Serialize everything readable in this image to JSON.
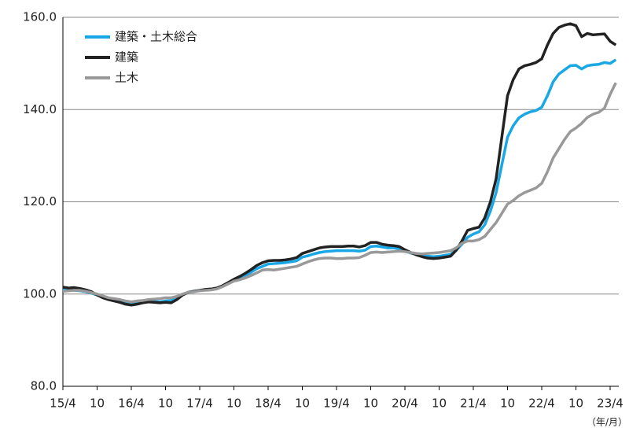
{
  "chart_data": {
    "type": "line",
    "x_label": "（年/月）",
    "categories": [
      "15/4",
      null,
      null,
      null,
      null,
      null,
      "10",
      null,
      null,
      null,
      null,
      null,
      "16/4",
      null,
      null,
      null,
      null,
      null,
      "10",
      null,
      null,
      null,
      null,
      null,
      "17/4",
      null,
      null,
      null,
      null,
      null,
      "10",
      null,
      null,
      null,
      null,
      null,
      "18/4",
      null,
      null,
      null,
      null,
      null,
      "10",
      null,
      null,
      null,
      null,
      null,
      "19/4",
      null,
      null,
      null,
      null,
      null,
      "10",
      null,
      null,
      null,
      null,
      null,
      "20/4",
      null,
      null,
      null,
      null,
      null,
      "10",
      null,
      null,
      null,
      null,
      null,
      "21/4",
      null,
      null,
      null,
      null,
      null,
      "10",
      null,
      null,
      null,
      null,
      null,
      "22/4",
      null,
      null,
      null,
      null,
      null,
      "10",
      null,
      null,
      null,
      null,
      null,
      "23/4",
      null
    ],
    "series": [
      {
        "name": "建築・土木総合",
        "color": "#1aa7e6",
        "values": [
          101,
          100.8,
          100.8,
          100.7,
          100.5,
          100.2,
          99.8,
          99.3,
          99,
          98.7,
          98.5,
          98.2,
          98,
          98,
          98.2,
          98.4,
          98.4,
          98.3,
          98.5,
          98.6,
          99,
          99.8,
          100.4,
          100.6,
          100.8,
          100.9,
          101,
          101.2,
          101.8,
          102.4,
          103,
          103.5,
          104,
          104.7,
          105.5,
          106,
          106.5,
          106.6,
          106.7,
          106.8,
          107,
          107.2,
          108,
          108.3,
          108.7,
          109,
          109.2,
          109.3,
          109.4,
          109.4,
          109.4,
          109.4,
          109.3,
          109.5,
          110.3,
          110.4,
          110.2,
          110,
          110,
          109.8,
          109.3,
          108.9,
          108.6,
          108.3,
          108.2,
          108.1,
          108.2,
          108.4,
          108.6,
          109.5,
          110.8,
          112.3,
          113,
          113.5,
          115,
          118,
          122,
          128,
          134,
          136.5,
          138.2,
          139,
          139.5,
          139.8,
          140.5,
          143,
          146,
          147.7,
          148.6,
          149.5,
          149.6,
          148.8,
          149.5,
          149.7,
          149.8,
          150.2,
          150,
          150.8
        ]
      },
      {
        "name": "建築",
        "color": "#222222",
        "values": [
          101.5,
          101.3,
          101.4,
          101.2,
          100.9,
          100.5,
          99.8,
          99.2,
          98.8,
          98.5,
          98.2,
          97.8,
          97.6,
          97.8,
          98.1,
          98.3,
          98.2,
          98.1,
          98.2,
          98.1,
          98.8,
          99.8,
          100.4,
          100.6,
          100.8,
          101,
          101.1,
          101.3,
          101.8,
          102.5,
          103.2,
          103.8,
          104.5,
          105.3,
          106.2,
          106.8,
          107.2,
          107.3,
          107.3,
          107.4,
          107.6,
          107.9,
          108.8,
          109.2,
          109.6,
          110,
          110.2,
          110.3,
          110.3,
          110.3,
          110.4,
          110.4,
          110.2,
          110.5,
          111.2,
          111.2,
          110.8,
          110.6,
          110.5,
          110.3,
          109.6,
          109,
          108.5,
          108.1,
          107.8,
          107.7,
          107.8,
          108,
          108.2,
          109.5,
          111.5,
          113.8,
          114.2,
          114.5,
          116.5,
          120,
          125,
          134,
          143,
          146.5,
          148.8,
          149.5,
          149.8,
          150.2,
          151,
          154,
          156.5,
          157.8,
          158.3,
          158.6,
          158.2,
          155.8,
          156.5,
          156.2,
          156.3,
          156.4,
          154.8,
          154
        ]
      },
      {
        "name": "土木",
        "color": "#999999",
        "values": [
          100.6,
          100.7,
          100.8,
          100.8,
          100.6,
          100.3,
          100,
          99.6,
          99.2,
          99,
          98.8,
          98.5,
          98.3,
          98.5,
          98.6,
          98.8,
          98.9,
          99,
          99.2,
          99.2,
          99.5,
          100,
          100.4,
          100.5,
          100.7,
          100.8,
          100.9,
          101.1,
          101.6,
          102.2,
          102.8,
          103.1,
          103.5,
          104,
          104.6,
          105.2,
          105.3,
          105.2,
          105.4,
          105.6,
          105.8,
          106,
          106.5,
          107,
          107.4,
          107.7,
          107.8,
          107.8,
          107.7,
          107.7,
          107.8,
          107.8,
          107.9,
          108.4,
          109,
          109.1,
          109,
          109.1,
          109.2,
          109.3,
          109.2,
          109,
          108.8,
          108.7,
          108.8,
          108.9,
          109,
          109.2,
          109.4,
          110,
          111,
          111.5,
          111.5,
          111.8,
          112.5,
          114,
          115.5,
          117.5,
          119.5,
          120.3,
          121.3,
          122,
          122.5,
          123,
          124,
          126.5,
          129.5,
          131.5,
          133.5,
          135.2,
          136,
          137,
          138.3,
          139,
          139.4,
          140.3,
          143.3,
          145.8
        ]
      }
    ],
    "ylim": [
      80,
      160
    ],
    "yticks": [
      {
        "value": 80,
        "label": "80.0"
      },
      {
        "value": 100,
        "label": "100.0"
      },
      {
        "value": 120,
        "label": "120.0"
      },
      {
        "value": 140,
        "label": "140.0"
      },
      {
        "value": 160,
        "label": "160.0"
      }
    ],
    "grid": true,
    "legend": "upper left"
  }
}
